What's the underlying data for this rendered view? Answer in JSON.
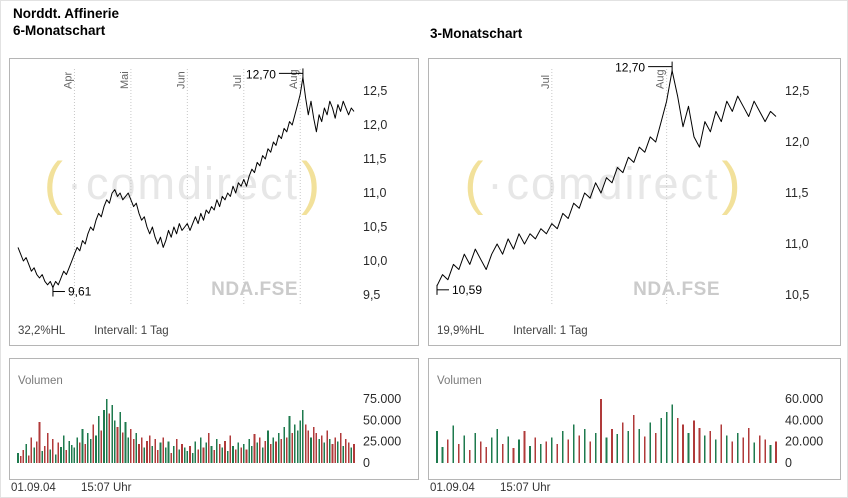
{
  "header": {
    "instrument": "Norddt. Affinerie"
  },
  "watermark": {
    "text": "comdirect",
    "gray_color": "#e7e7e7",
    "yellow_color": "#f2e19b"
  },
  "colors": {
    "line": "#000000",
    "vol_up": "#1e7a4e",
    "vol_down": "#b03a3a",
    "grid": "#c8c8c8",
    "axis_text": "#2a2a2a",
    "month_text": "#666666"
  },
  "chart_data": [
    {
      "type": "line",
      "title": "6-Monatschart",
      "symbol": "NDA.FSE",
      "hl_label": "32,2%HL",
      "interval_label": "Intervall: 1 Tag",
      "footer_date": "01.09.04",
      "footer_time": "15:07 Uhr",
      "ylim": [
        9.5,
        12.5
      ],
      "yticks": [
        {
          "v": 12.5,
          "label": "12,5"
        },
        {
          "v": 12.0,
          "label": "12,0"
        },
        {
          "v": 11.5,
          "label": "11,5"
        },
        {
          "v": 11.0,
          "label": "11,0"
        },
        {
          "v": 10.5,
          "label": "10,5"
        },
        {
          "v": 10.0,
          "label": "10,0"
        },
        {
          "v": 9.5,
          "label": "9,5"
        }
      ],
      "month_lines": [
        {
          "index": 21,
          "label": "Apr"
        },
        {
          "index": 42,
          "label": "Mai"
        },
        {
          "index": 63,
          "label": "Jun"
        },
        {
          "index": 84,
          "label": "Jul"
        },
        {
          "index": 105,
          "label": "Aug"
        }
      ],
      "markers": [
        {
          "kind": "high",
          "index": 106,
          "label": "12,70"
        },
        {
          "kind": "low",
          "index": 13,
          "label": "9,61"
        }
      ],
      "values": [
        10.2,
        10.1,
        10.0,
        10.05,
        9.95,
        9.85,
        9.9,
        9.8,
        9.75,
        9.8,
        9.7,
        9.65,
        9.7,
        9.61,
        9.7,
        9.65,
        9.75,
        9.85,
        9.8,
        9.9,
        10.0,
        10.1,
        10.2,
        10.15,
        10.3,
        10.25,
        10.4,
        10.5,
        10.45,
        10.6,
        10.7,
        10.65,
        10.8,
        10.9,
        10.85,
        11.0,
        11.05,
        10.95,
        11.0,
        10.9,
        10.95,
        11.0,
        10.9,
        10.8,
        10.85,
        10.7,
        10.6,
        10.65,
        10.5,
        10.4,
        10.5,
        10.35,
        10.25,
        10.35,
        10.2,
        10.3,
        10.45,
        10.35,
        10.5,
        10.4,
        10.55,
        10.45,
        10.5,
        10.55,
        10.45,
        10.55,
        10.65,
        10.55,
        10.7,
        10.6,
        10.75,
        10.7,
        10.8,
        10.75,
        10.9,
        10.8,
        10.95,
        10.9,
        11.0,
        10.95,
        11.1,
        11.0,
        11.15,
        11.1,
        11.2,
        11.1,
        11.25,
        11.35,
        11.3,
        11.45,
        11.4,
        11.55,
        11.5,
        11.65,
        11.6,
        11.75,
        11.7,
        11.85,
        11.8,
        11.95,
        11.9,
        12.05,
        12.0,
        12.15,
        12.3,
        12.45,
        12.7,
        12.4,
        12.15,
        12.35,
        12.1,
        11.9,
        12.15,
        12.05,
        12.25,
        12.15,
        12.35,
        12.25,
        12.1,
        12.3,
        12.2,
        12.35,
        12.25,
        12.15,
        12.25,
        12.2
      ],
      "volume": {
        "label": "Volumen",
        "yticks": [
          {
            "v": 75000,
            "label": "75.000"
          },
          {
            "v": 50000,
            "label": "50.000"
          },
          {
            "v": 25000,
            "label": "25.000"
          },
          {
            "v": 0,
            "label": "0"
          }
        ],
        "values": [
          12000,
          8000,
          15000,
          22000,
          9000,
          30000,
          18000,
          25000,
          48000,
          14000,
          20000,
          35000,
          16000,
          28000,
          10000,
          24000,
          19000,
          32000,
          15000,
          26000,
          21000,
          18000,
          30000,
          24000,
          40000,
          22000,
          35000,
          28000,
          45000,
          32000,
          55000,
          38000,
          62000,
          75000,
          58000,
          68000,
          50000,
          42000,
          60000,
          36000,
          48000,
          30000,
          40000,
          28000,
          35000,
          22000,
          30000,
          18000,
          26000,
          32000,
          20000,
          28000,
          15000,
          24000,
          30000,
          18000,
          25000,
          12000,
          20000,
          28000,
          16000,
          22000,
          18000,
          14000,
          20000,
          12000,
          25000,
          16000,
          30000,
          18000,
          24000,
          35000,
          20000,
          15000,
          28000,
          22000,
          18000,
          26000,
          14000,
          32000,
          20000,
          16000,
          24000,
          18000,
          22000,
          16000,
          28000,
          20000,
          34000,
          24000,
          30000,
          18000,
          26000,
          38000,
          22000,
          30000,
          25000,
          35000,
          28000,
          42000,
          30000,
          55000,
          35000,
          45000,
          38000,
          50000,
          62000,
          45000,
          38000,
          30000,
          42000,
          35000,
          28000,
          32000,
          24000,
          38000,
          28000,
          22000,
          30000,
          25000,
          35000,
          20000,
          28000,
          24000,
          18000,
          22000
        ]
      }
    },
    {
      "type": "line",
      "title": "3-Monatschart",
      "symbol": "NDA.FSE",
      "hl_label": "19,9%HL",
      "interval_label": "Intervall: 1 Tag",
      "footer_date": "01.09.04",
      "footer_time": "15:07 Uhr",
      "ylim": [
        10.5,
        12.5
      ],
      "yticks": [
        {
          "v": 12.5,
          "label": "12,5"
        },
        {
          "v": 12.0,
          "label": "12,0"
        },
        {
          "v": 11.5,
          "label": "11,5"
        },
        {
          "v": 11.0,
          "label": "11,0"
        },
        {
          "v": 10.5,
          "label": "10,5"
        }
      ],
      "month_lines": [
        {
          "index": 21,
          "label": "Jul"
        },
        {
          "index": 42,
          "label": "Aug"
        }
      ],
      "markers": [
        {
          "kind": "high",
          "index": 43,
          "label": "12,70"
        },
        {
          "kind": "low",
          "index": 0,
          "label": "10,59"
        }
      ],
      "values": [
        10.59,
        10.7,
        10.65,
        10.8,
        10.75,
        10.9,
        10.8,
        10.95,
        10.85,
        10.75,
        10.9,
        11.0,
        10.9,
        11.05,
        10.95,
        11.1,
        11.0,
        11.1,
        11.05,
        11.15,
        11.1,
        11.2,
        11.15,
        11.3,
        11.25,
        11.4,
        11.35,
        11.5,
        11.45,
        11.6,
        11.5,
        11.65,
        11.6,
        11.75,
        11.7,
        11.85,
        11.8,
        11.95,
        11.9,
        12.05,
        12.0,
        12.2,
        12.4,
        12.7,
        12.45,
        12.15,
        12.35,
        12.05,
        11.95,
        12.2,
        12.1,
        12.3,
        12.2,
        12.4,
        12.3,
        12.45,
        12.35,
        12.25,
        12.4,
        12.3,
        12.2,
        12.3,
        12.25
      ],
      "volume": {
        "label": "Volumen",
        "yticks": [
          {
            "v": 60000,
            "label": "60.000"
          },
          {
            "v": 40000,
            "label": "40.000"
          },
          {
            "v": 20000,
            "label": "20.000"
          },
          {
            "v": 0,
            "label": "0"
          }
        ],
        "values": [
          30000,
          15000,
          22000,
          35000,
          18000,
          26000,
          12000,
          28000,
          20000,
          15000,
          24000,
          32000,
          18000,
          25000,
          14000,
          22000,
          30000,
          16000,
          24000,
          18000,
          20000,
          24000,
          18000,
          30000,
          22000,
          36000,
          26000,
          32000,
          20000,
          28000,
          60000,
          24000,
          32000,
          27000,
          38000,
          30000,
          45000,
          32000,
          25000,
          38000,
          28000,
          42000,
          48000,
          55000,
          42000,
          36000,
          28000,
          40000,
          33000,
          26000,
          30000,
          22000,
          36000,
          26000,
          20000,
          28000,
          24000,
          33000,
          19000,
          26000,
          22000,
          17000,
          20000
        ]
      }
    }
  ]
}
